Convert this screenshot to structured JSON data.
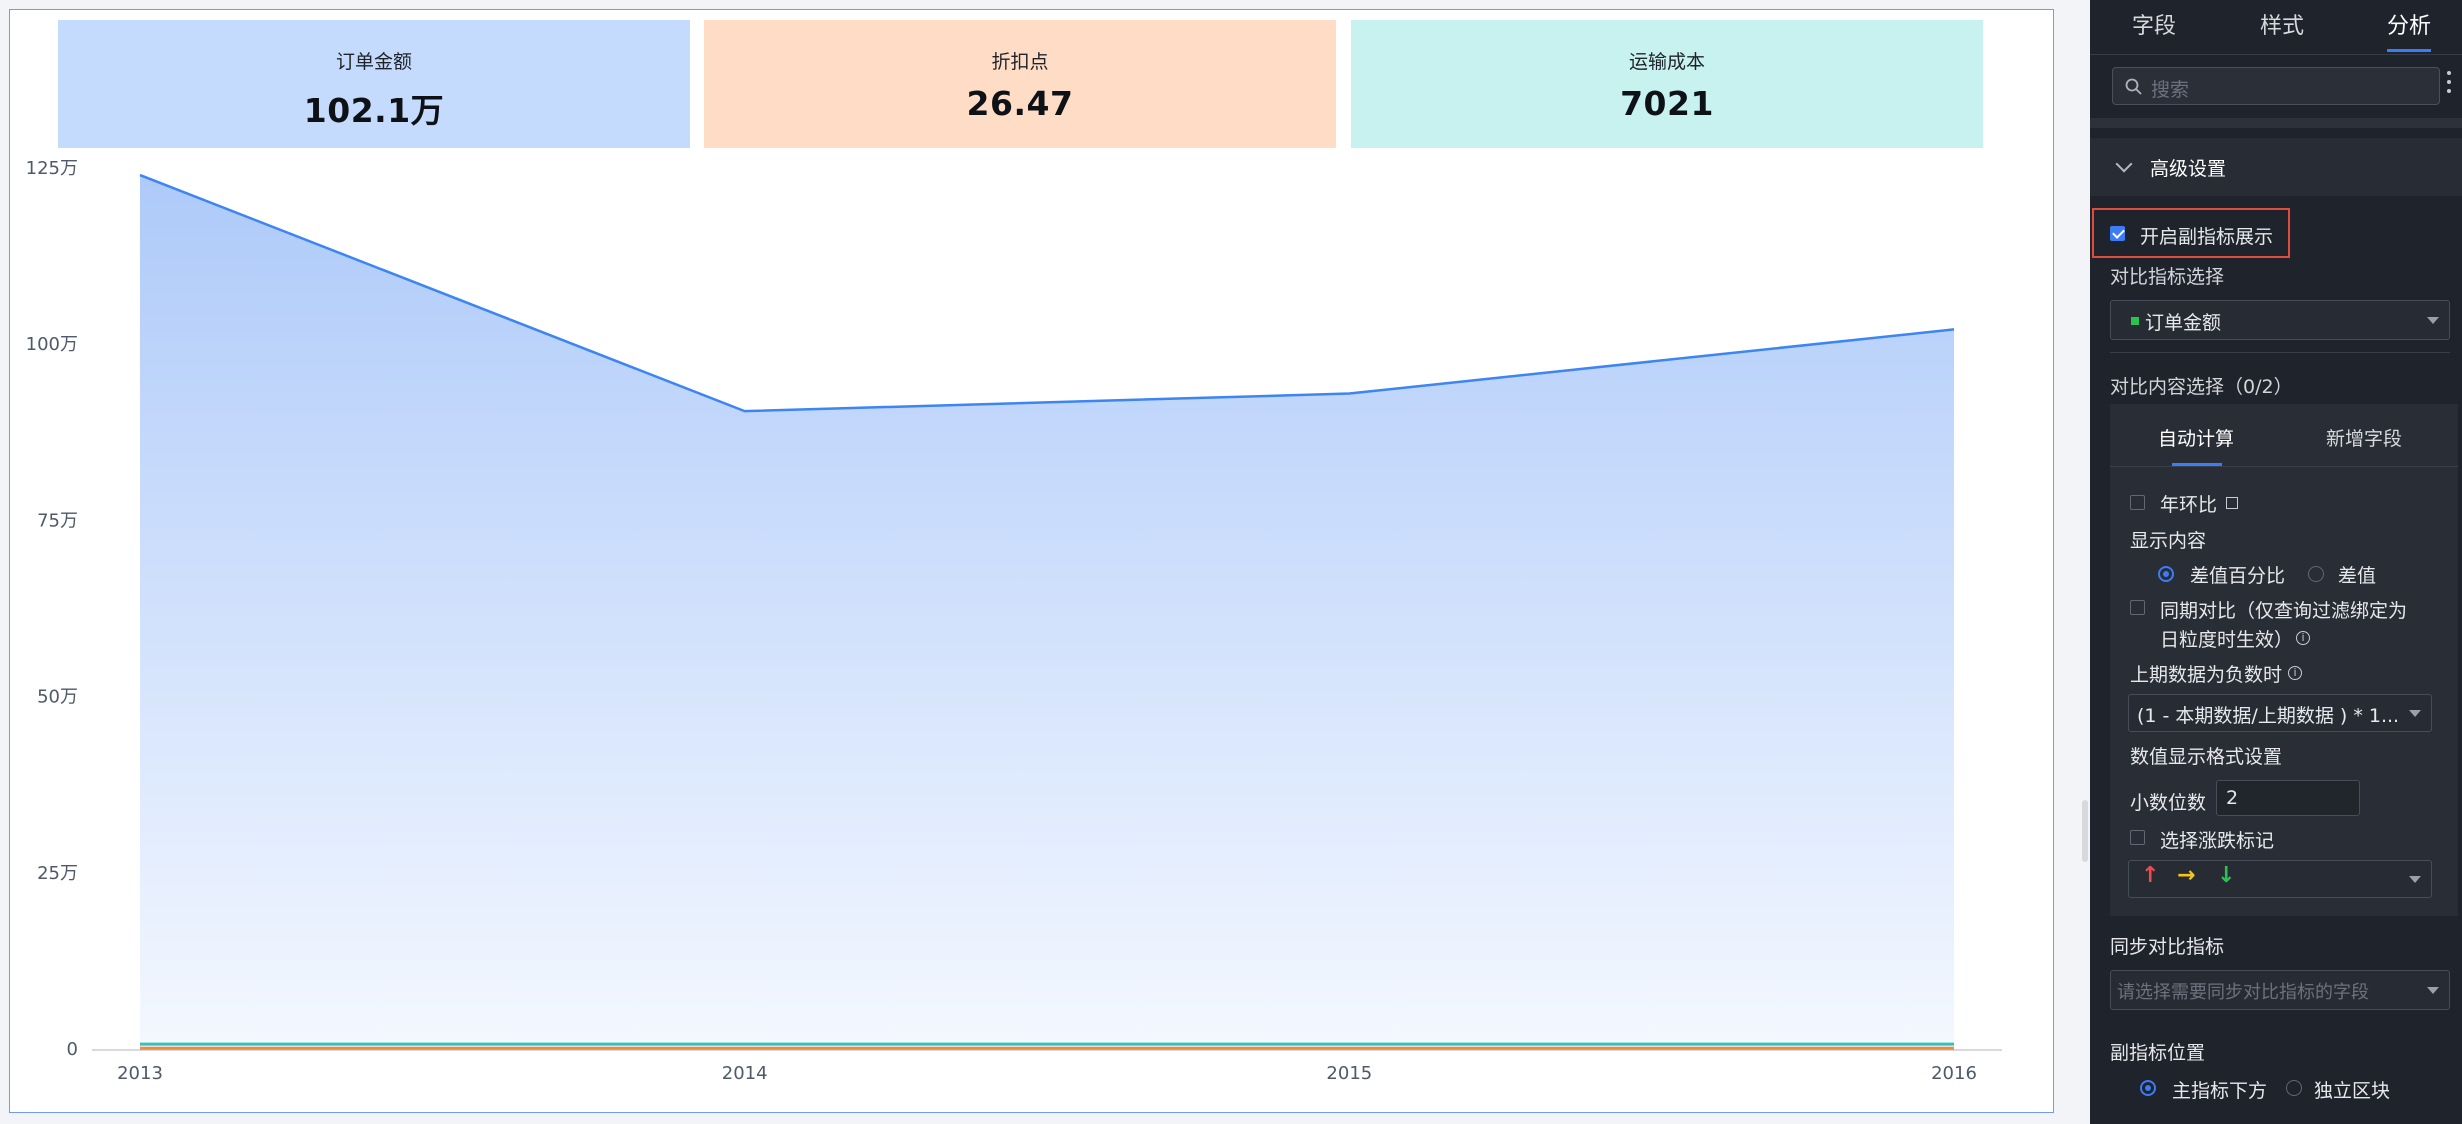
{
  "kpis": [
    {
      "name": "订单金额",
      "value": "102.1万",
      "bg": "#c4dbfd"
    },
    {
      "name": "折扣点",
      "value": "26.47",
      "bg": "#fedcc5"
    },
    {
      "name": "运输成本",
      "value": "7021",
      "bg": "#c8f2f0"
    }
  ],
  "chart_data": {
    "type": "area",
    "x": [
      "2013",
      "2014",
      "2015",
      "2016"
    ],
    "y_ticks": [
      "0",
      "25万",
      "50万",
      "75万",
      "100万",
      "125万"
    ],
    "ylim": [
      0,
      125
    ],
    "series": [
      {
        "values": [
          124,
          90.5,
          93,
          102.1
        ],
        "color": "#3c85f3"
      },
      {
        "values": [
          0.7,
          0.7,
          0.7,
          0.7
        ],
        "color": "#34c3b4"
      },
      {
        "values": [
          0.1,
          0.1,
          0.1,
          0.1
        ],
        "color": "#f08a3c"
      }
    ]
  },
  "panel": {
    "tabs": [
      "字段",
      "样式",
      "分析"
    ],
    "active_tab": "分析",
    "search_placeholder": "搜索",
    "section_title": "高级设置",
    "enable_sub_metric": "开启副指标展示",
    "compare_metric_label": "对比指标选择",
    "compare_metric_value": "订单金额",
    "compare_content_label": "对比内容选择（0/2）",
    "subtabs": [
      "自动计算",
      "新增字段"
    ],
    "yoy_label": "年环比",
    "display_content_label": "显示内容",
    "radio_diff_pct": "差值百分比",
    "radio_diff": "差值",
    "same_period_line1": "同期对比（仅查询过滤绑定为",
    "same_period_line2": "日粒度时生效）",
    "negative_label": "上期数据为负数时",
    "negative_value": "(1 - 本期数据/上期数据 ) * 1...",
    "format_label": "数值显示格式设置",
    "decimals_label": "小数位数",
    "decimals_value": "2",
    "updown_label": "选择涨跌标记",
    "sync_label": "同步对比指标",
    "sync_placeholder": "请选择需要同步对比指标的字段",
    "position_label": "副指标位置",
    "pos_below": "主指标下方",
    "pos_separate": "独立区块"
  }
}
